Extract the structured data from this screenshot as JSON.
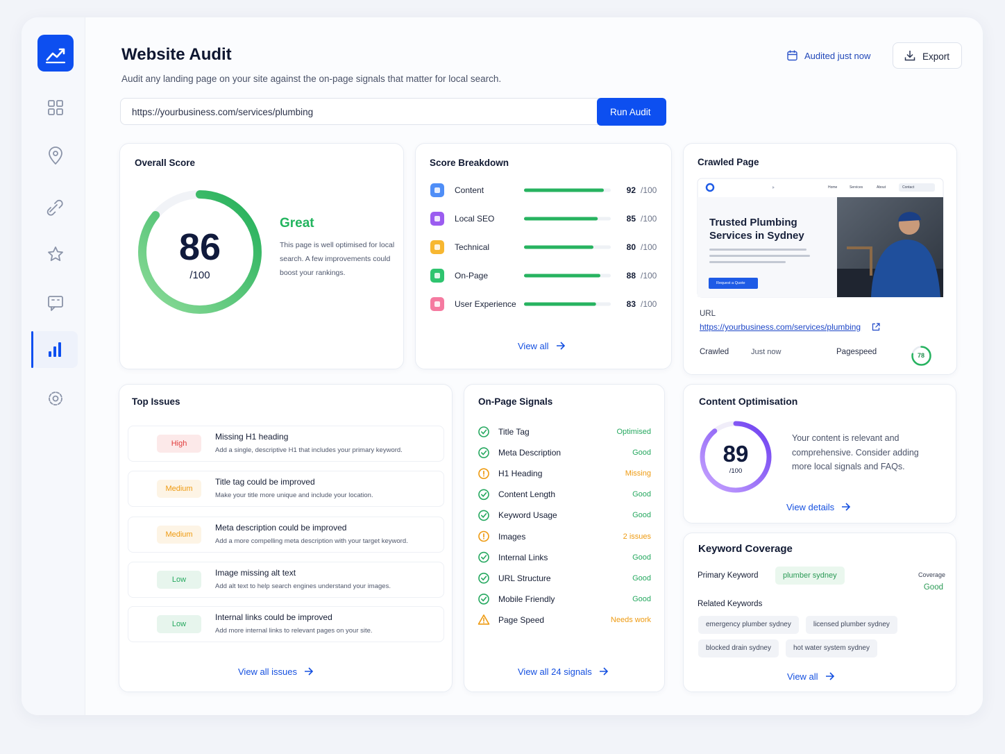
{
  "header": {
    "title": "Website Audit",
    "subtitle": "Audit any landing page on your site against the on-page signals that matter for local search.",
    "audited": "Audited just now",
    "export": "Export"
  },
  "search": {
    "url": "https://yourbusiness.com/services/plumbing",
    "button": "Run Audit"
  },
  "score_scale": {
    "value": 100,
    "label": "/100"
  },
  "overall": {
    "title": "Overall Score",
    "score": 86,
    "rating": "Great",
    "description": "This page is well optimised for local search. A few improvements could boost your rankings.",
    "color": "#22b45e"
  },
  "breakdown": {
    "title": "Score Breakdown",
    "bar_color": "#27b360",
    "items": [
      {
        "name": "Content",
        "score": 92,
        "color": "#4f8ef7"
      },
      {
        "name": "Local SEO",
        "score": 85,
        "color": "#9b5cf0"
      },
      {
        "name": "Technical",
        "score": 80,
        "color": "#f7b731"
      },
      {
        "name": "On-Page",
        "score": 88,
        "color": "#2fc46f"
      },
      {
        "name": "User Experience",
        "score": 83,
        "color": "#f57aa0"
      }
    ],
    "link": "View all"
  },
  "crawled": {
    "title": "Crawled Page",
    "preview": {
      "nav": [
        "Home",
        "Services",
        "About",
        "Contact"
      ],
      "headline": "Trusted Plumbing Services in Sydney",
      "button": "Request a Quote"
    },
    "url_label": "URL",
    "url": "https://yourbusiness.com/services/plumbing",
    "crawled_label": "Crawled",
    "crawled_value": "Just now",
    "pagespeed_label": "Pagespeed",
    "pagespeed": 78
  },
  "issues": {
    "title": "Top Issues",
    "items": [
      {
        "severity": "High",
        "title": "Missing H1 heading",
        "description": "Add a single, descriptive H1 that includes your primary keyword.",
        "color": "#e03b3b",
        "icon": "alert"
      },
      {
        "severity": "Medium",
        "title": "Title tag could be improved",
        "description": "Make your title more unique and include your location.",
        "color": "#ee9a10",
        "icon": "alert"
      },
      {
        "severity": "Medium",
        "title": "Meta description could be improved",
        "description": "Add a more compelling meta description with your target keyword.",
        "color": "#ee9a10",
        "icon": "alert"
      },
      {
        "severity": "Low",
        "title": "Image missing alt text",
        "description": "Add alt text to help search engines understand your images.",
        "color": "#25a85f",
        "icon": "check"
      },
      {
        "severity": "Low",
        "title": "Internal links could be improved",
        "description": "Add more internal links to relevant pages on your site.",
        "color": "#25a85f",
        "icon": "check"
      }
    ],
    "link": "View all issues"
  },
  "signals": {
    "title": "On-Page Signals",
    "items": [
      {
        "name": "Title Tag",
        "status": "Optimised",
        "color": "#25a85f",
        "icon": "check"
      },
      {
        "name": "Meta Description",
        "status": "Good",
        "color": "#25a85f",
        "icon": "check"
      },
      {
        "name": "H1 Heading",
        "status": "Missing",
        "color": "#ee9a10",
        "icon": "alert"
      },
      {
        "name": "Content Length",
        "status": "Good",
        "color": "#25a85f",
        "icon": "check"
      },
      {
        "name": "Keyword Usage",
        "status": "Good",
        "color": "#25a85f",
        "icon": "check"
      },
      {
        "name": "Images",
        "status": "2 issues",
        "color": "#ee9a10",
        "icon": "alert"
      },
      {
        "name": "Internal Links",
        "status": "Good",
        "color": "#25a85f",
        "icon": "check"
      },
      {
        "name": "URL Structure",
        "status": "Good",
        "color": "#25a85f",
        "icon": "check"
      },
      {
        "name": "Mobile Friendly",
        "status": "Good",
        "color": "#25a85f",
        "icon": "check"
      },
      {
        "name": "Page Speed",
        "status": "Needs work",
        "color": "#ee9a10",
        "icon": "warning"
      }
    ],
    "link": "View all 24 signals"
  },
  "content_opt": {
    "title": "Content Optimisation",
    "score": 89,
    "description": "Your content is relevant and comprehensive. Consider adding more local signals and FAQs.",
    "link": "View details"
  },
  "keywords": {
    "title": "Keyword Coverage",
    "primary_label": "Primary Keyword",
    "primary": "plumber sydney",
    "coverage_label": "Coverage",
    "coverage": "Good",
    "related_label": "Related Keywords",
    "related": [
      "emergency plumber sydney",
      "licensed plumber sydney",
      "blocked drain sydney",
      "hot water system sydney"
    ],
    "link": "View all"
  }
}
